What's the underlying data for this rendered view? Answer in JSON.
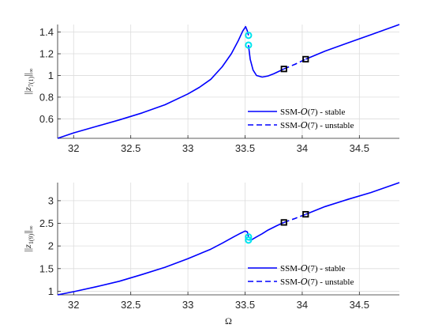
{
  "chart_data": [
    {
      "type": "line",
      "ylabel": "||z_{7(1)}||_∞",
      "xlim": [
        31.86,
        34.85
      ],
      "ylim": [
        0.42,
        1.47
      ],
      "xticks": [
        32,
        32.5,
        33,
        33.5,
        34,
        34.5
      ],
      "xtick_labels": [
        "32",
        "32.5",
        "33",
        "33.5",
        "34",
        "34.5"
      ],
      "yticks": [
        0.6,
        0.8,
        1.0,
        1.2,
        1.4
      ],
      "ytick_labels": [
        "0.6",
        "0.8",
        "1",
        "1.2",
        "1.4"
      ],
      "grid": true,
      "legend_position": "bottom-right",
      "colors": {
        "line": "#0000ff",
        "bifurcation_saddle_node": "#00e5ee",
        "bifurcation_hopf": "#000000"
      },
      "series": [
        {
          "name": "SSM-\\mathcal{O}(7) - stable",
          "style": "solid",
          "segments": [
            {
              "x": [
                31.86,
                32.0,
                32.2,
                32.4,
                32.6,
                32.8,
                33.0,
                33.1,
                33.2,
                33.3,
                33.38,
                33.44,
                33.48,
                33.505,
                33.52,
                33.53
              ],
              "y": [
                0.42,
                0.47,
                0.53,
                0.59,
                0.655,
                0.73,
                0.83,
                0.89,
                0.965,
                1.08,
                1.2,
                1.32,
                1.41,
                1.45,
                1.41,
                1.37
              ]
            },
            {
              "x": [
                33.53,
                33.545,
                33.57,
                33.6,
                33.65,
                33.7,
                33.75,
                33.8,
                33.84
              ],
              "y": [
                1.28,
                1.15,
                1.05,
                1.0,
                0.985,
                0.995,
                1.015,
                1.04,
                1.06
              ]
            },
            {
              "x": [
                34.03,
                34.2,
                34.4,
                34.6,
                34.85
              ],
              "y": [
                1.15,
                1.225,
                1.3,
                1.375,
                1.47
              ]
            }
          ]
        },
        {
          "name": "SSM-\\mathcal{O}(7) - unstable",
          "style": "dashed",
          "segments": [
            {
              "x": [
                33.84,
                33.94,
                34.03
              ],
              "y": [
                1.06,
                1.105,
                1.15
              ]
            }
          ]
        }
      ],
      "markers": [
        {
          "type": "saddle-node",
          "x": 33.53,
          "y": 1.37
        },
        {
          "type": "saddle-node",
          "x": 33.53,
          "y": 1.28
        },
        {
          "type": "hopf",
          "x": 33.84,
          "y": 1.06
        },
        {
          "type": "hopf",
          "x": 34.03,
          "y": 1.15
        }
      ]
    },
    {
      "type": "line",
      "xlabel": "Ω",
      "ylabel": "||z_{1(9)}||_∞",
      "xlim": [
        31.86,
        34.85
      ],
      "ylim": [
        0.92,
        3.4
      ],
      "xticks": [
        32,
        32.5,
        33,
        33.5,
        34,
        34.5
      ],
      "xtick_labels": [
        "32",
        "32.5",
        "33",
        "33.5",
        "34",
        "34.5"
      ],
      "yticks": [
        1,
        1.5,
        2,
        2.5,
        3
      ],
      "ytick_labels": [
        "1",
        "1.5",
        "2",
        "2.5",
        "3"
      ],
      "grid": true,
      "legend_position": "bottom-right",
      "colors": {
        "line": "#0000ff",
        "bifurcation_saddle_node": "#00e5ee",
        "bifurcation_hopf": "#000000"
      },
      "series": [
        {
          "name": "SSM-\\mathcal{O}(7) - stable",
          "style": "solid",
          "segments": [
            {
              "x": [
                31.86,
                32.0,
                32.2,
                32.4,
                32.6,
                32.8,
                33.0,
                33.2,
                33.3,
                33.4,
                33.46,
                33.5,
                33.52,
                33.53
              ],
              "y": [
                0.92,
                0.99,
                1.1,
                1.22,
                1.37,
                1.53,
                1.72,
                1.93,
                2.06,
                2.2,
                2.28,
                2.33,
                2.31,
                2.2
              ]
            },
            {
              "x": [
                33.53,
                33.56,
                33.6,
                33.65,
                33.7,
                33.78,
                33.84
              ],
              "y": [
                2.13,
                2.14,
                2.2,
                2.27,
                2.35,
                2.45,
                2.52
              ]
            },
            {
              "x": [
                34.03,
                34.2,
                34.4,
                34.6,
                34.85
              ],
              "y": [
                2.7,
                2.87,
                3.03,
                3.18,
                3.4
              ]
            }
          ]
        },
        {
          "name": "SSM-\\mathcal{O}(7) - unstable",
          "style": "dashed",
          "segments": [
            {
              "x": [
                33.84,
                33.94,
                34.03
              ],
              "y": [
                2.52,
                2.61,
                2.7
              ]
            }
          ]
        }
      ],
      "markers": [
        {
          "type": "saddle-node",
          "x": 33.53,
          "y": 2.2
        },
        {
          "type": "saddle-node",
          "x": 33.53,
          "y": 2.13
        },
        {
          "type": "hopf",
          "x": 33.84,
          "y": 2.52
        },
        {
          "type": "hopf",
          "x": 34.03,
          "y": 2.7
        }
      ]
    }
  ]
}
